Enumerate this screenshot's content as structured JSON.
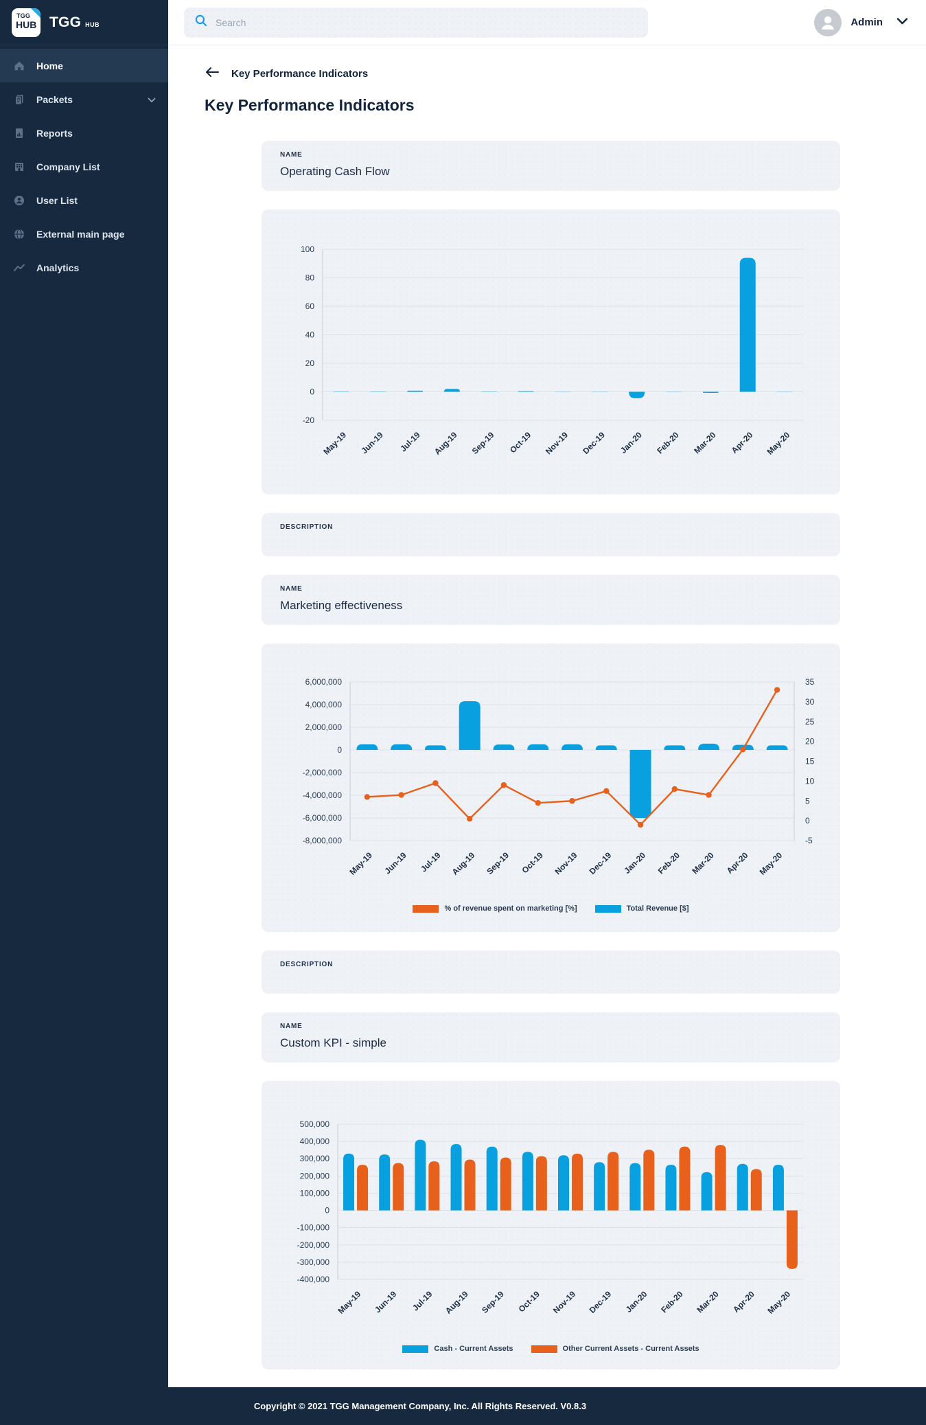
{
  "brand": {
    "badge_line1": "TGG",
    "badge_line2": "HUB",
    "name": "TGG",
    "suffix": "HUB"
  },
  "topbar": {
    "search_placeholder": "Search",
    "user_name": "Admin"
  },
  "sidebar": {
    "items": [
      {
        "label": "Home",
        "icon": "home-icon",
        "active": true
      },
      {
        "label": "Packets",
        "icon": "packets-icon",
        "active": false,
        "has_submenu": true
      },
      {
        "label": "Reports",
        "icon": "reports-icon",
        "active": false
      },
      {
        "label": "Company List",
        "icon": "company-icon",
        "active": false
      },
      {
        "label": "User List",
        "icon": "users-icon",
        "active": false
      },
      {
        "label": "External main page",
        "icon": "globe-icon",
        "active": false
      },
      {
        "label": "Analytics",
        "icon": "analytics-icon",
        "active": false
      }
    ]
  },
  "page": {
    "breadcrumb": "Key Performance Indicators",
    "title": "Key Performance Indicators"
  },
  "kpis": [
    {
      "name_label": "NAME",
      "name": "Operating Cash Flow",
      "description_label": "DESCRIPTION",
      "description": ""
    },
    {
      "name_label": "NAME",
      "name": "Marketing effectiveness",
      "description_label": "DESCRIPTION",
      "description": ""
    },
    {
      "name_label": "NAME",
      "name": "Custom KPI - simple"
    }
  ],
  "colors": {
    "blue": "#09a0e0",
    "orange": "#e8611c",
    "navy": "#16293e",
    "card_bg": "#eef2f6",
    "grid": "#dce3e9",
    "axis": "#c5ced6"
  },
  "chart_data": [
    {
      "type": "bar",
      "title": "Operating Cash Flow",
      "categories": [
        "May-19",
        "Jun-19",
        "Jul-19",
        "Aug-19",
        "Sep-19",
        "Oct-19",
        "Nov-19",
        "Dec-19",
        "Jan-20",
        "Feb-20",
        "Mar-20",
        "Apr-20",
        "May-20"
      ],
      "values": [
        0.2,
        0.2,
        0.8,
        2,
        0.2,
        0.4,
        0.1,
        0.1,
        -4.5,
        0.1,
        -0.7,
        94,
        0.1
      ],
      "ylim": [
        -20,
        100
      ],
      "yticks": [
        100,
        80,
        60,
        40,
        20,
        0,
        -20
      ],
      "ytick_labels": [
        "100",
        "80",
        "60",
        "40",
        "20",
        "0",
        "-20"
      ],
      "bar_color": "#09a0e0",
      "grid": true,
      "legend": "none"
    },
    {
      "type": "bar+line",
      "title": "Marketing effectiveness",
      "categories": [
        "May-19",
        "Jun-19",
        "Jul-19",
        "Aug-19",
        "Sep-19",
        "Oct-19",
        "Nov-19",
        "Dec-19",
        "Jan-20",
        "Feb-20",
        "Mar-20",
        "Apr-20",
        "May-20"
      ],
      "series": [
        {
          "name": "% of revenue spent on marketing [%]",
          "type": "line",
          "axis": "right",
          "color": "#e8611c",
          "values": [
            6,
            6.5,
            9.5,
            0.5,
            9,
            4.5,
            5,
            7.5,
            -1,
            8,
            6.5,
            18,
            33
          ]
        },
        {
          "name": "Total Revenue [$]",
          "type": "bar",
          "axis": "left",
          "color": "#09a0e0",
          "values": [
            500000,
            500000,
            400000,
            4300000,
            480000,
            500000,
            500000,
            400000,
            -6000000,
            400000,
            550000,
            450000,
            400000
          ]
        }
      ],
      "left_ylim": [
        -8000000,
        6000000
      ],
      "left_yticks": [
        6000000,
        4000000,
        2000000,
        0,
        -2000000,
        -4000000,
        -6000000,
        -8000000
      ],
      "left_ytick_labels": [
        "6,000,000",
        "4,000,000",
        "2,000,000",
        "0",
        "-2,000,000",
        "-4,000,000",
        "-6,000,000",
        "-8,000,000"
      ],
      "right_ylim": [
        -5,
        35
      ],
      "right_yticks": [
        35,
        30,
        25,
        20,
        15,
        10,
        5,
        0,
        -5
      ],
      "right_ytick_labels": [
        "35",
        "30",
        "25",
        "20",
        "15",
        "10",
        "5",
        "0",
        "-5"
      ],
      "grid": true,
      "legend": "bottom"
    },
    {
      "type": "grouped-bar",
      "title": "Custom KPI - simple",
      "categories": [
        "May-19",
        "Jun-19",
        "Jul-19",
        "Aug-19",
        "Sep-19",
        "Oct-19",
        "Nov-19",
        "Dec-19",
        "Jan-20",
        "Feb-20",
        "Mar-20",
        "Apr-20",
        "May-20"
      ],
      "series": [
        {
          "name": "Cash - Current Assets",
          "color": "#09a0e0",
          "values": [
            330000,
            325000,
            410000,
            385000,
            370000,
            340000,
            320000,
            280000,
            275000,
            265000,
            222000,
            270000,
            265000
          ]
        },
        {
          "name": "Other Current Assets - Current Assets",
          "color": "#e8611c",
          "values": [
            265000,
            275000,
            285000,
            295000,
            307000,
            315000,
            330000,
            340000,
            352000,
            370000,
            380000,
            240000,
            -340000
          ]
        }
      ],
      "ylim": [
        -400000,
        500000
      ],
      "yticks": [
        500000,
        400000,
        300000,
        200000,
        100000,
        0,
        -100000,
        -200000,
        -300000,
        -400000
      ],
      "ytick_labels": [
        "500,000",
        "400,000",
        "300,000",
        "200,000",
        "100,000",
        "0",
        "-100,000",
        "-200,000",
        "-300,000",
        "-400,000"
      ],
      "grid": true,
      "legend": "bottom"
    }
  ],
  "footer": {
    "text": "Copyright © 2021 TGG Management Company, Inc. All Rights Reserved. V0.8.3"
  }
}
